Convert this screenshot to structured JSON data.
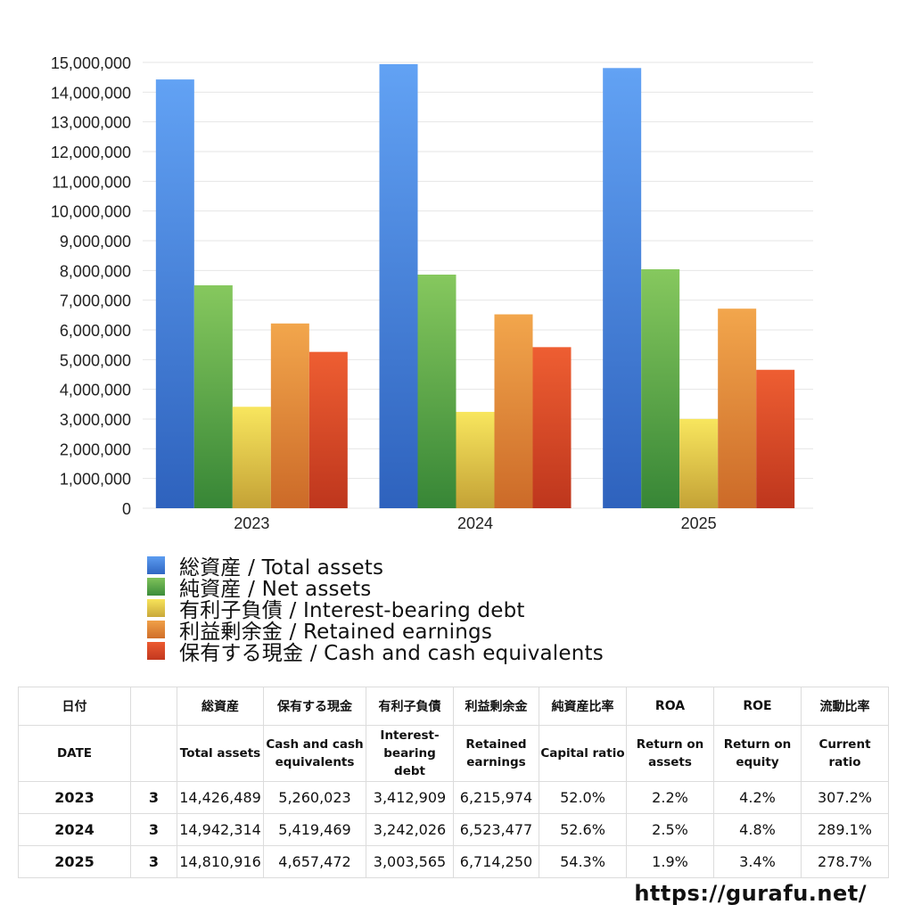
{
  "chart_data": {
    "type": "bar",
    "categories": [
      "2023",
      "2024",
      "2025"
    ],
    "series": [
      {
        "name": "総資産 / Total assets",
        "values": [
          14426489,
          14942314,
          14810916
        ],
        "color": "#4a86e0"
      },
      {
        "name": "純資産 / Net assets",
        "values": [
          7500000,
          7860000,
          8040000
        ],
        "color": "#5aab48"
      },
      {
        "name": "有利子負債 / Interest-bearing debt",
        "values": [
          3412909,
          3242026,
          3003565
        ],
        "color": "#ecd24a"
      },
      {
        "name": "利益剰余金 / Retained earnings",
        "values": [
          6215974,
          6523477,
          6714250
        ],
        "color": "#e58a3a"
      },
      {
        "name": "保有する現金 /  Cash and cash equivalents",
        "values": [
          5260023,
          5419469,
          4657472
        ],
        "color": "#dd4b2a"
      }
    ],
    "y_ticks": [
      "0",
      "1,000,000",
      "2,000,000",
      "3,000,000",
      "4,000,000",
      "5,000,000",
      "6,000,000",
      "7,000,000",
      "8,000,000",
      "9,000,000",
      "10,000,000",
      "11,000,000",
      "12,000,000",
      "13,000,000",
      "14,000,000",
      "15,000,000"
    ],
    "ylim": [
      0,
      15000000
    ],
    "grid": true,
    "legend_position": "bottom-left"
  },
  "table": {
    "header_jp": [
      "日付",
      "",
      "総資産",
      "保有する現金",
      "有利子負債",
      "利益剰余金",
      "純資産比率",
      "ROA",
      "ROE",
      "流動比率"
    ],
    "header_en": [
      "DATE",
      "",
      "Total assets",
      "Cash and cash equivalents",
      "Interest-bearing debt",
      "Retained earnings",
      "Capital ratio",
      "Return on assets",
      "Return on equity",
      "Current ratio"
    ],
    "rows": [
      [
        "2023",
        "3",
        "14,426,489",
        "5,260,023",
        "3,412,909",
        "6,215,974",
        "52.0%",
        "2.2%",
        "4.2%",
        "307.2%"
      ],
      [
        "2024",
        "3",
        "14,942,314",
        "5,419,469",
        "3,242,026",
        "6,523,477",
        "52.6%",
        "2.5%",
        "4.8%",
        "289.1%"
      ],
      [
        "2025",
        "3",
        "14,810,916",
        "4,657,472",
        "3,003,565",
        "6,714,250",
        "54.3%",
        "1.9%",
        "3.4%",
        "278.7%"
      ]
    ]
  },
  "footer": {
    "url": "https://gurafu.net/"
  }
}
